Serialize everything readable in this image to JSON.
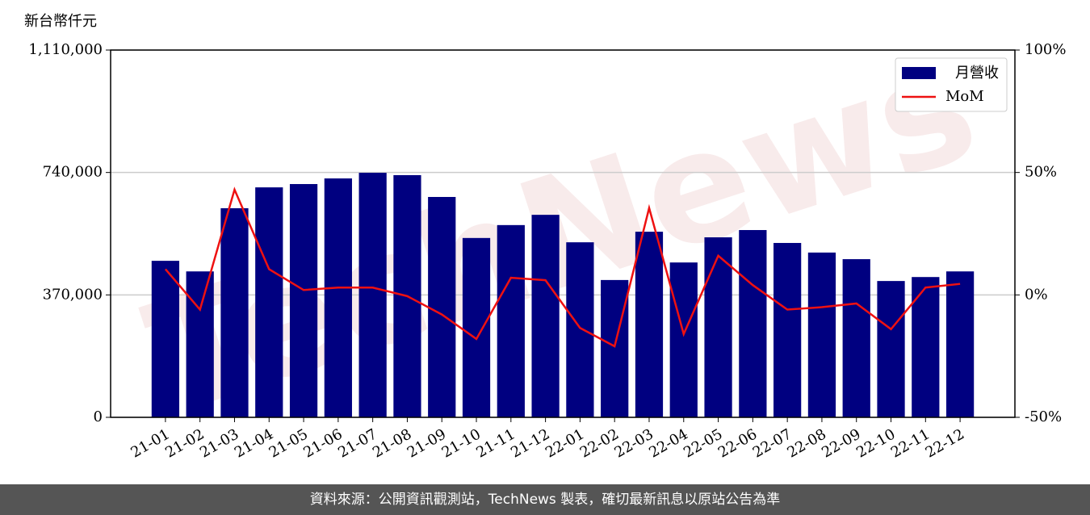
{
  "chart_data": {
    "type": "bar_line",
    "y_unit_label": "新台幣仟元",
    "watermark": "TechNews",
    "footer": "資料來源：公開資訊觀測站，TechNews 製表，確切最新訊息以原站公告為準",
    "categories": [
      "21-01",
      "21-02",
      "21-03",
      "21-04",
      "21-05",
      "21-06",
      "21-07",
      "21-08",
      "21-09",
      "21-10",
      "21-11",
      "21-12",
      "22-01",
      "22-02",
      "22-03",
      "22-04",
      "22-05",
      "22-06",
      "22-07",
      "22-08",
      "22-09",
      "22-10",
      "22-11",
      "22-12"
    ],
    "series": [
      {
        "name": "月營收",
        "color": "#000080",
        "type": "bar",
        "values": [
          473000,
          441000,
          632000,
          695000,
          705000,
          722000,
          739000,
          732000,
          666000,
          542000,
          581000,
          612000,
          529000,
          415000,
          561000,
          468000,
          544000,
          566000,
          527000,
          498000,
          478000,
          412000,
          424000,
          441000
        ]
      },
      {
        "name": "MoM",
        "color": "#ee1111",
        "type": "line",
        "axis": "y2",
        "values": [
          10.5,
          -6,
          43,
          10.5,
          2,
          3,
          3,
          -0.5,
          -8,
          -18,
          7,
          6,
          -13.5,
          -21,
          35.5,
          -16,
          16,
          4,
          -6,
          -5,
          -3.5,
          -14,
          3,
          4.5
        ]
      }
    ],
    "ylim": [
      0,
      1110000
    ],
    "yticks": [
      0,
      {
        "value": 370000,
        "label": "370,000"
      },
      {
        "value": 740000,
        "label": "740,000"
      },
      {
        "value": 1110000,
        "label": "1,110,000"
      }
    ],
    "y2lim": [
      -50,
      100
    ],
    "y2ticks": [
      {
        "value": -50,
        "label": "-50%"
      },
      {
        "value": 0,
        "label": "0%"
      },
      {
        "value": 50,
        "label": "50%"
      },
      {
        "value": 100,
        "label": "100%"
      }
    ],
    "grid": true,
    "legend": "upper right"
  }
}
